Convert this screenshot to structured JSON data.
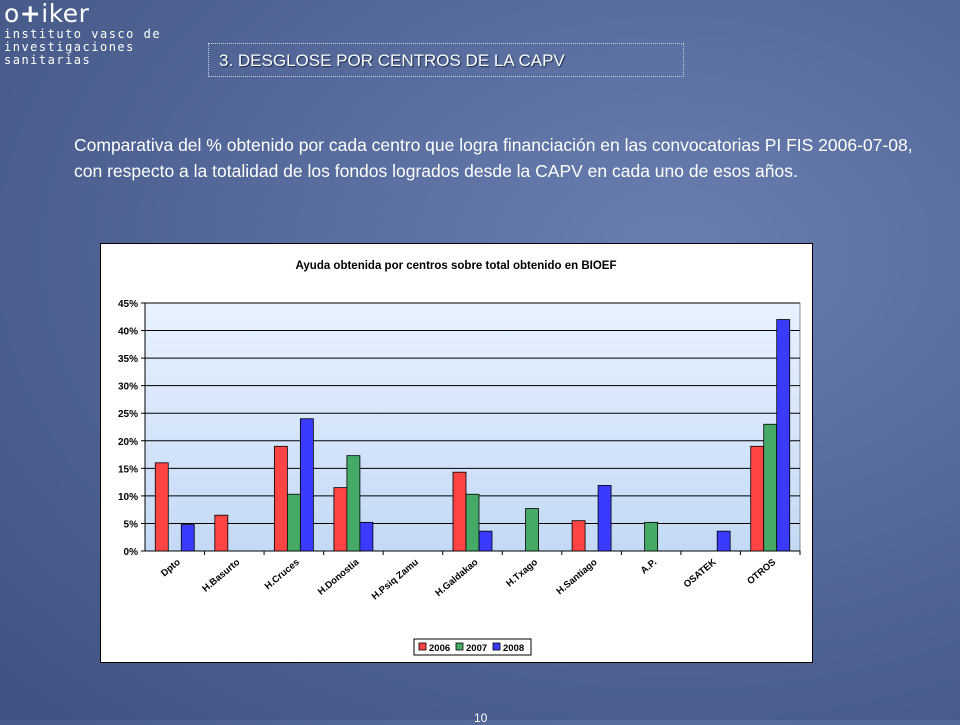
{
  "logo": {
    "name": "o+iker",
    "name_part1": "o",
    "name_plus": "+",
    "name_part2": "iker",
    "line1": "instituto vasco de",
    "line2": "investigaciones",
    "line3": "sanitarias"
  },
  "section_title": "3. DESGLOSE POR CENTROS DE LA CAPV",
  "description": "Comparativa del % obtenido por cada centro que logra financiación en las convocatorias PI FIS 2006-07-08, con respecto a la totalidad de los fondos logrados desde la CAPV en cada uno de esos años.",
  "page_number": "10",
  "colors": {
    "s2006": "#ff4444",
    "s2007": "#44aa66",
    "s2008": "#3b3bff",
    "plot_bg_top": "#e8f2ff",
    "plot_bg_bottom": "#c4d9f5"
  },
  "chart_data": {
    "type": "bar",
    "title": "Ayuda obtenida por centros sobre total obtenido en BIOEF",
    "categories": [
      "Dpto",
      "H.Basurto",
      "H.Cruces",
      "H.Donostia",
      "H.Psiq Zamu",
      "H.Galdakao",
      "H.Txago",
      "H.Santiago",
      "A.P.",
      "OSATEK",
      "OTROS"
    ],
    "series": [
      {
        "name": "2006",
        "values": [
          16,
          6.5,
          19,
          11.5,
          null,
          14.3,
          null,
          5.5,
          null,
          null,
          19
        ]
      },
      {
        "name": "2007",
        "values": [
          null,
          null,
          10.3,
          17.3,
          null,
          10.3,
          7.7,
          null,
          5.2,
          null,
          23
        ]
      },
      {
        "name": "2008",
        "values": [
          4.8,
          null,
          24,
          5.2,
          null,
          3.6,
          null,
          11.9,
          null,
          3.6,
          42
        ]
      }
    ],
    "ylim": [
      0,
      45
    ],
    "yticks": [
      "0%",
      "5%",
      "10%",
      "15%",
      "20%",
      "25%",
      "30%",
      "35%",
      "40%",
      "45%"
    ],
    "ytick_values": [
      0,
      5,
      10,
      15,
      20,
      25,
      30,
      35,
      40,
      45
    ],
    "grid": true,
    "legend_placement": "bottom"
  }
}
